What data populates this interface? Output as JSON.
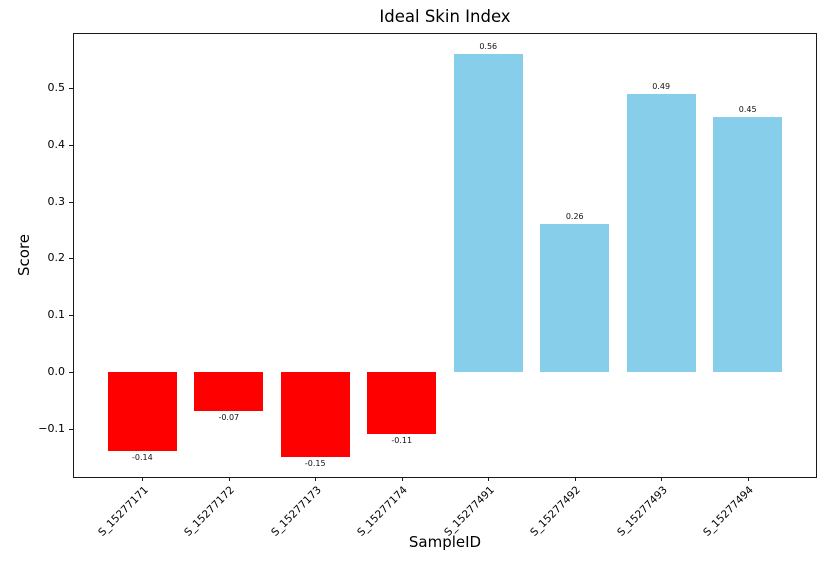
{
  "chart_data": {
    "type": "bar",
    "title": "Ideal Skin Index",
    "xlabel": "SampleID",
    "ylabel": "Score",
    "categories": [
      "S_15277171",
      "S_15277172",
      "S_15277173",
      "S_15277174",
      "S_15277491",
      "S_15277492",
      "S_15277493",
      "S_15277494"
    ],
    "values": [
      -0.14,
      -0.07,
      -0.15,
      -0.11,
      0.56,
      0.26,
      0.49,
      0.45
    ],
    "bar_labels": [
      "-0.14",
      "-0.07",
      "-0.15",
      "-0.11",
      "0.56",
      "0.26",
      "0.49",
      "0.45"
    ],
    "yticks": [
      -0.1,
      0.0,
      0.1,
      0.2,
      0.3,
      0.4,
      0.5
    ],
    "ytick_labels": [
      "−0.1",
      "0.0",
      "0.1",
      "0.2",
      "0.3",
      "0.4",
      "0.5"
    ],
    "ylim": [
      -0.1855,
      0.5955
    ],
    "xlim": [
      -0.79,
      7.79
    ],
    "bar_width_units": 0.8,
    "grid": false,
    "legend": null,
    "colors": {
      "positive": "#87CEEB",
      "negative": "#FF0000",
      "spine": "#1a1a1a"
    }
  }
}
